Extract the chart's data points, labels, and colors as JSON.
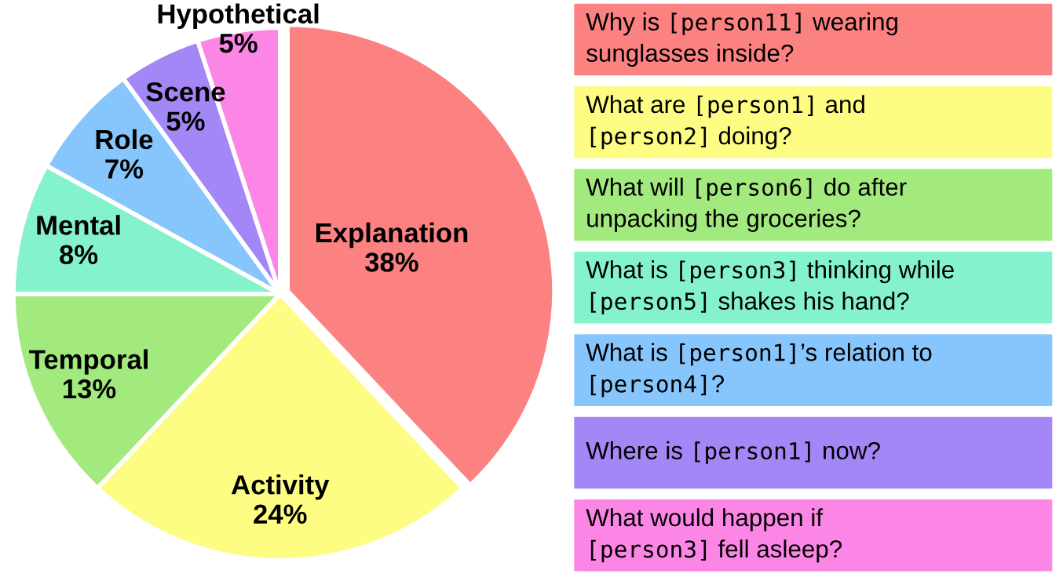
{
  "chart_data": [
    {
      "type": "pie",
      "categories": [
        "Explanation",
        "Activity",
        "Temporal",
        "Mental",
        "Role",
        "Scene",
        "Hypothetical"
      ],
      "values": [
        38,
        24,
        13,
        8,
        7,
        5,
        5
      ],
      "colors": [
        "#fc8282",
        "#fdfd84",
        "#a3ea7e",
        "#84f2cc",
        "#86c6fc",
        "#a487f6",
        "#fc86e6"
      ],
      "value_labels": [
        "38%",
        "24%",
        "13%",
        "8%",
        "7%",
        "5%",
        "5%"
      ]
    },
    {
      "type": "other",
      "annotations": [
        "Why is [person11] wearing\nsunglasses inside?",
        "What are [person1] and\n[person2] doing?",
        "What will [person6] do after\nunpacking the groceries?",
        "What is [person3] thinking while\n[person5] shakes his hand?",
        "What is [person1]’s relation to\n[person4]?",
        "Where is [person1] now?",
        "What would happen if\n[person3] fell asleep?"
      ],
      "colors": [
        "#fc8282",
        "#fdfd84",
        "#a3ea7e",
        "#84f2cc",
        "#86c6fc",
        "#a487f6",
        "#fc86e6"
      ]
    }
  ]
}
